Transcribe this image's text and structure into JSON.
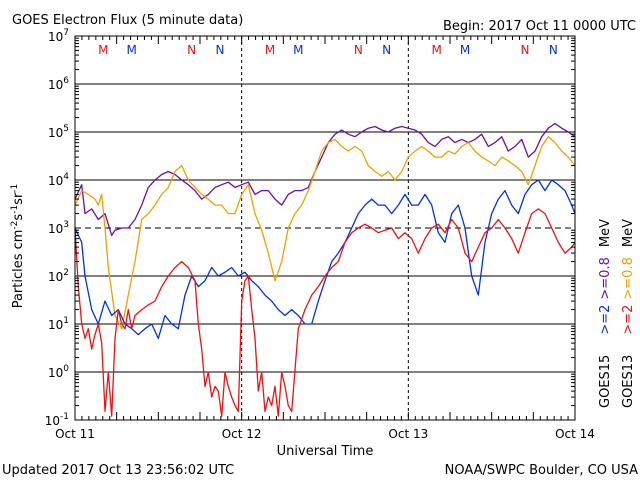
{
  "header": {
    "title": "GOES Electron Flux (5 minute data)",
    "begin": "Begin: 2017 Oct 11 0000 UTC"
  },
  "footer": {
    "updated": "Updated 2017 Oct 13 23:56:02 UTC",
    "source": "NOAA/SWPC Boulder, CO USA"
  },
  "colors": {
    "goes15_2mev": "#0033dd",
    "goes15_08mev": "#6a0eb0",
    "goes13_2mev": "#ee1111",
    "goes13_08mev": "#f0a000",
    "dashed": "#000000"
  },
  "chart_data": {
    "type": "line",
    "title": "GOES Electron Flux (5 minute data)",
    "xlabel": "Universal Time",
    "ylabel": "Particles cm-2s-1sr-1",
    "yscale": "log",
    "ylim": [
      0.1,
      10000000
    ],
    "xlim_days": [
      0,
      3
    ],
    "x_tick_labels": [
      "Oct 11",
      "Oct 12",
      "Oct 13",
      "Oct 14"
    ],
    "y_ticks": [
      {
        "base": "10",
        "exp": "-1"
      },
      {
        "base": "10",
        "exp": "0"
      },
      {
        "base": "10",
        "exp": "1"
      },
      {
        "base": "10",
        "exp": "2"
      },
      {
        "base": "10",
        "exp": "3"
      },
      {
        "base": "10",
        "exp": "4"
      },
      {
        "base": "10",
        "exp": "5"
      },
      {
        "base": "10",
        "exp": "6"
      },
      {
        "base": "10",
        "exp": "7"
      }
    ],
    "reference_line": {
      "value": 1000,
      "style": "dashed"
    },
    "markers": [
      {
        "label": "M",
        "time_days": 0.17,
        "sat": "GOES13"
      },
      {
        "label": "M",
        "time_days": 0.34,
        "sat": "GOES15"
      },
      {
        "label": "N",
        "time_days": 0.7,
        "sat": "GOES13"
      },
      {
        "label": "N",
        "time_days": 0.87,
        "sat": "GOES15"
      },
      {
        "label": "M",
        "time_days": 1.17,
        "sat": "GOES13"
      },
      {
        "label": "M",
        "time_days": 1.34,
        "sat": "GOES15"
      },
      {
        "label": "N",
        "time_days": 1.7,
        "sat": "GOES13"
      },
      {
        "label": "N",
        "time_days": 1.87,
        "sat": "GOES15"
      },
      {
        "label": "M",
        "time_days": 2.17,
        "sat": "GOES13"
      },
      {
        "label": "M",
        "time_days": 2.34,
        "sat": "GOES15"
      },
      {
        "label": "N",
        "time_days": 2.7,
        "sat": "GOES13"
      },
      {
        "label": "N",
        "time_days": 2.87,
        "sat": "GOES15"
      }
    ],
    "legend": {
      "goes15": {
        "sat": "GOES15",
        "e2": ">=2",
        "e08": ">=0.8",
        "unit": "MeV"
      },
      "goes13": {
        "sat": "GOES13",
        "e2": ">=2",
        "e08": ">=0.8",
        "unit": "MeV"
      }
    },
    "series": [
      {
        "name": "GOES15 >=0.8 MeV",
        "color_key": "goes15_08mev",
        "t": [
          0.0,
          0.04,
          0.06,
          0.1,
          0.14,
          0.18,
          0.22,
          0.24,
          0.28,
          0.32,
          0.36,
          0.4,
          0.44,
          0.48,
          0.52,
          0.56,
          0.6,
          0.64,
          0.68,
          0.72,
          0.76,
          0.8,
          0.84,
          0.88,
          0.92,
          0.96,
          1.0,
          1.04,
          1.08,
          1.12,
          1.16,
          1.2,
          1.24,
          1.28,
          1.32,
          1.36,
          1.4,
          1.44,
          1.48,
          1.52,
          1.56,
          1.6,
          1.64,
          1.68,
          1.72,
          1.76,
          1.8,
          1.84,
          1.88,
          1.92,
          1.96,
          2.0,
          2.04,
          2.08,
          2.12,
          2.16,
          2.2,
          2.24,
          2.28,
          2.32,
          2.36,
          2.4,
          2.44,
          2.48,
          2.52,
          2.56,
          2.6,
          2.64,
          2.68,
          2.72,
          2.76,
          2.8,
          2.84,
          2.88,
          2.92,
          2.96,
          3.0
        ],
        "v": [
          4000,
          8000,
          2000,
          2500,
          1500,
          2000,
          700,
          900,
          1000,
          1000,
          1500,
          3000,
          7000,
          10000,
          13000,
          15000,
          13000,
          10000,
          8000,
          6000,
          4000,
          5000,
          7000,
          8000,
          9000,
          7000,
          8000,
          9000,
          5000,
          6000,
          6000,
          4000,
          3000,
          5000,
          6000,
          6000,
          7000,
          15000,
          30000,
          60000,
          90000,
          110000,
          90000,
          80000,
          100000,
          120000,
          130000,
          110000,
          100000,
          120000,
          130000,
          120000,
          110000,
          90000,
          60000,
          50000,
          70000,
          80000,
          60000,
          70000,
          60000,
          70000,
          90000,
          50000,
          60000,
          80000,
          40000,
          50000,
          70000,
          30000,
          40000,
          80000,
          120000,
          150000,
          120000,
          100000,
          80000
        ]
      },
      {
        "name": "GOES13 >=0.8 MeV",
        "color_key": "goes13_08mev",
        "t": [
          0.0,
          0.04,
          0.08,
          0.12,
          0.14,
          0.16,
          0.18,
          0.2,
          0.24,
          0.28,
          0.32,
          0.36,
          0.4,
          0.44,
          0.48,
          0.52,
          0.56,
          0.6,
          0.64,
          0.68,
          0.72,
          0.76,
          0.8,
          0.84,
          0.88,
          0.92,
          0.96,
          1.0,
          1.04,
          1.08,
          1.12,
          1.16,
          1.2,
          1.24,
          1.28,
          1.32,
          1.36,
          1.4,
          1.44,
          1.48,
          1.52,
          1.56,
          1.6,
          1.64,
          1.68,
          1.72,
          1.76,
          1.8,
          1.84,
          1.88,
          1.92,
          1.96,
          2.0,
          2.04,
          2.08,
          2.12,
          2.16,
          2.2,
          2.24,
          2.28,
          2.32,
          2.36,
          2.4,
          2.44,
          2.48,
          2.52,
          2.56,
          2.6,
          2.64,
          2.68,
          2.72,
          2.76,
          2.8,
          2.84,
          2.88,
          2.92,
          2.96,
          3.0
        ],
        "v": [
          3000,
          6000,
          5000,
          4000,
          3000,
          5000,
          1000,
          150,
          15,
          8,
          40,
          200,
          1500,
          2000,
          3000,
          5000,
          7000,
          15000,
          20000,
          10000,
          7000,
          5000,
          4000,
          3000,
          3000,
          2000,
          2000,
          5000,
          8000,
          2000,
          900,
          300,
          80,
          200,
          1000,
          2000,
          3000,
          6000,
          15000,
          40000,
          60000,
          70000,
          50000,
          40000,
          50000,
          40000,
          20000,
          15000,
          12000,
          15000,
          10000,
          15000,
          30000,
          40000,
          50000,
          40000,
          30000,
          30000,
          40000,
          35000,
          50000,
          60000,
          40000,
          30000,
          25000,
          20000,
          30000,
          25000,
          20000,
          15000,
          8000,
          20000,
          50000,
          80000,
          60000,
          40000,
          30000,
          20000
        ]
      },
      {
        "name": "GOES15 >=2 MeV",
        "color_key": "goes15_2mev",
        "t": [
          0.0,
          0.04,
          0.06,
          0.1,
          0.14,
          0.18,
          0.22,
          0.26,
          0.3,
          0.34,
          0.38,
          0.42,
          0.46,
          0.5,
          0.54,
          0.58,
          0.62,
          0.66,
          0.7,
          0.74,
          0.78,
          0.82,
          0.86,
          0.9,
          0.94,
          0.98,
          1.02,
          1.06,
          1.1,
          1.14,
          1.18,
          1.22,
          1.26,
          1.3,
          1.34,
          1.38,
          1.42,
          1.46,
          1.5,
          1.54,
          1.58,
          1.62,
          1.66,
          1.7,
          1.74,
          1.78,
          1.82,
          1.86,
          1.9,
          1.94,
          1.98,
          2.02,
          2.06,
          2.1,
          2.14,
          2.18,
          2.22,
          2.26,
          2.3,
          2.34,
          2.38,
          2.42,
          2.46,
          2.5,
          2.54,
          2.58,
          2.62,
          2.66,
          2.7,
          2.74,
          2.78,
          2.82,
          2.86,
          2.9,
          2.94,
          2.98,
          3.0
        ],
        "v": [
          1000,
          500,
          100,
          20,
          10,
          30,
          15,
          20,
          10,
          8,
          6,
          8,
          10,
          5,
          15,
          10,
          8,
          40,
          100,
          60,
          80,
          150,
          100,
          120,
          150,
          100,
          120,
          80,
          60,
          40,
          30,
          20,
          15,
          20,
          15,
          10,
          10,
          30,
          80,
          200,
          300,
          500,
          1000,
          2000,
          3000,
          4000,
          3000,
          3000,
          2000,
          3000,
          5000,
          3000,
          3000,
          5000,
          3000,
          800,
          500,
          2000,
          3000,
          1000,
          100,
          40,
          500,
          2000,
          4000,
          6000,
          3000,
          2000,
          5000,
          8000,
          10000,
          6000,
          10000,
          8000,
          6000,
          3000,
          2000
        ]
      },
      {
        "name": "GOES13 >=2 MeV",
        "color_key": "goes13_2mev",
        "t": [
          0.0,
          0.02,
          0.04,
          0.06,
          0.08,
          0.1,
          0.12,
          0.14,
          0.16,
          0.18,
          0.2,
          0.22,
          0.24,
          0.26,
          0.28,
          0.3,
          0.32,
          0.34,
          0.36,
          0.4,
          0.44,
          0.48,
          0.52,
          0.56,
          0.6,
          0.64,
          0.68,
          0.72,
          0.74,
          0.76,
          0.78,
          0.8,
          0.82,
          0.84,
          0.86,
          0.88,
          0.9,
          0.92,
          0.94,
          0.96,
          0.98,
          1.0,
          1.02,
          1.04,
          1.06,
          1.08,
          1.1,
          1.12,
          1.14,
          1.16,
          1.18,
          1.2,
          1.22,
          1.24,
          1.26,
          1.28,
          1.3,
          1.34,
          1.38,
          1.42,
          1.46,
          1.5,
          1.54,
          1.58,
          1.62,
          1.66,
          1.7,
          1.74,
          1.78,
          1.82,
          1.86,
          1.9,
          1.94,
          1.98,
          2.02,
          2.06,
          2.1,
          2.14,
          2.18,
          2.22,
          2.26,
          2.3,
          2.34,
          2.38,
          2.42,
          2.46,
          2.5,
          2.54,
          2.58,
          2.62,
          2.66,
          2.7,
          2.74,
          2.78,
          2.82,
          2.86,
          2.9,
          2.94,
          2.98,
          3.0
        ],
        "v": [
          1000,
          60,
          10,
          5,
          8,
          3,
          6,
          10,
          4,
          0.15,
          1,
          0.12,
          5,
          20,
          10,
          8,
          20,
          8,
          15,
          20,
          25,
          30,
          60,
          100,
          150,
          200,
          150,
          80,
          10,
          3,
          0.5,
          1,
          0.3,
          0.5,
          0.4,
          0.12,
          1,
          0.5,
          0.3,
          0.2,
          0.15,
          30,
          80,
          100,
          20,
          5,
          0.4,
          1,
          0.15,
          0.3,
          0.2,
          0.5,
          0.12,
          1,
          0.5,
          0.2,
          0.15,
          8,
          20,
          40,
          60,
          100,
          150,
          200,
          500,
          800,
          1000,
          1200,
          1000,
          800,
          900,
          1000,
          600,
          800,
          600,
          300,
          600,
          1000,
          1200,
          800,
          1500,
          1000,
          300,
          200,
          400,
          800,
          1000,
          1500,
          1000,
          600,
          300,
          800,
          2000,
          2500,
          2000,
          1000,
          500,
          300,
          400,
          500
        ]
      }
    ]
  }
}
